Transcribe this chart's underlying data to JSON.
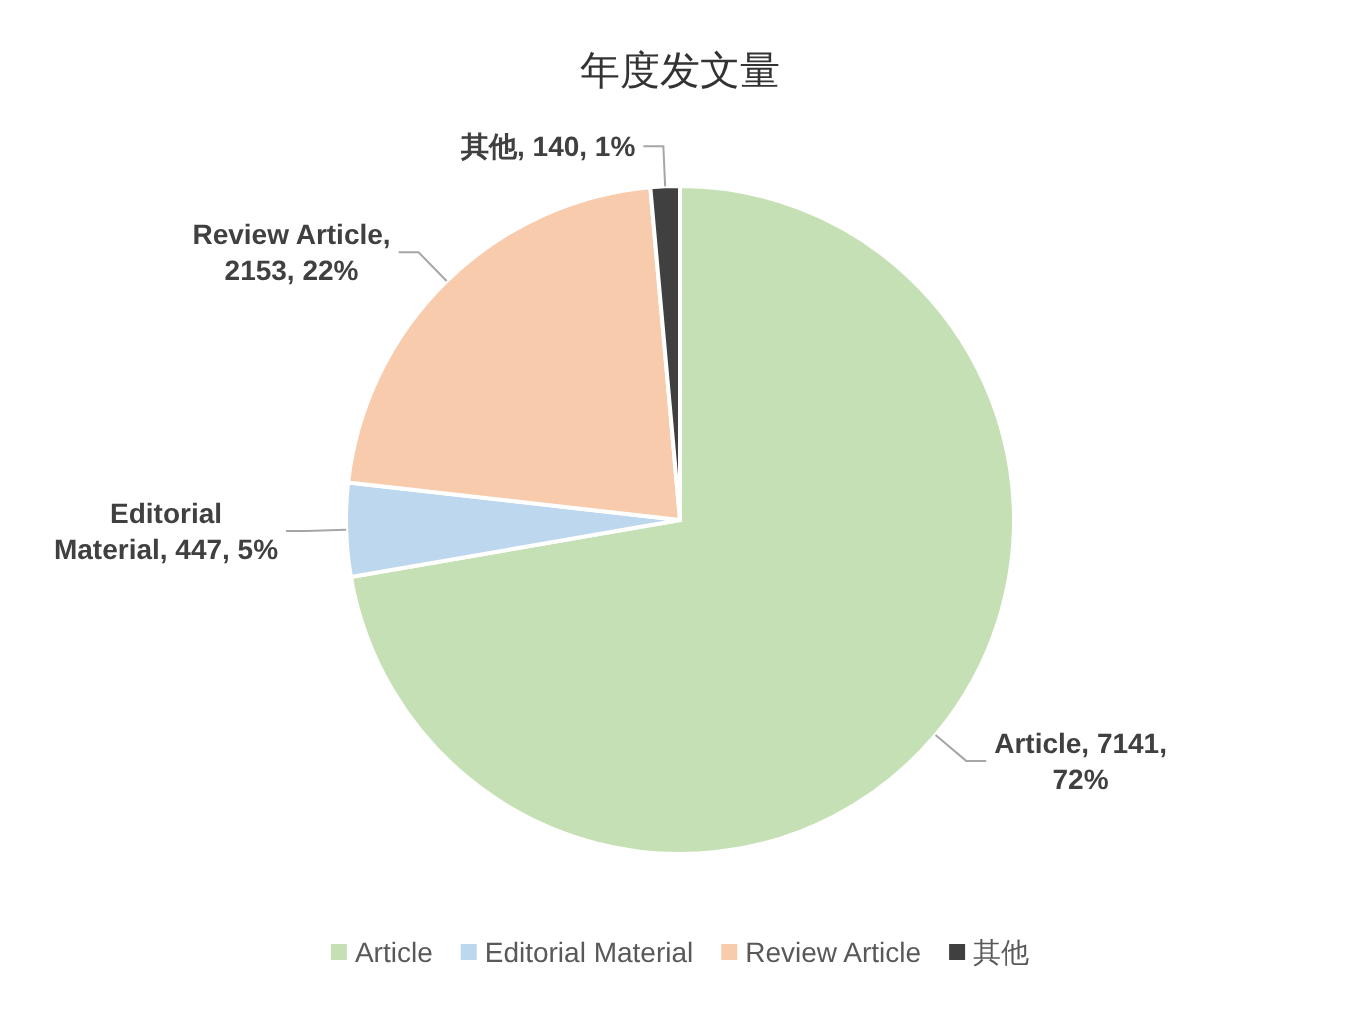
{
  "chart_data": {
    "type": "pie",
    "title": "年度发文量",
    "categories": [
      "Article",
      "Editorial Material",
      "Review Article",
      "其他"
    ],
    "values": [
      7141,
      447,
      2153,
      140
    ],
    "colors": [
      "#c5e0b4",
      "#bdd7ee",
      "#f8cbad",
      "#404040"
    ],
    "value_labels": [
      "Article, 7141, 72%",
      "Editorial Material, 447, 5%",
      "Review Article, 2153, 22%",
      "其他, 140, 1%"
    ],
    "legend": "bottom"
  }
}
